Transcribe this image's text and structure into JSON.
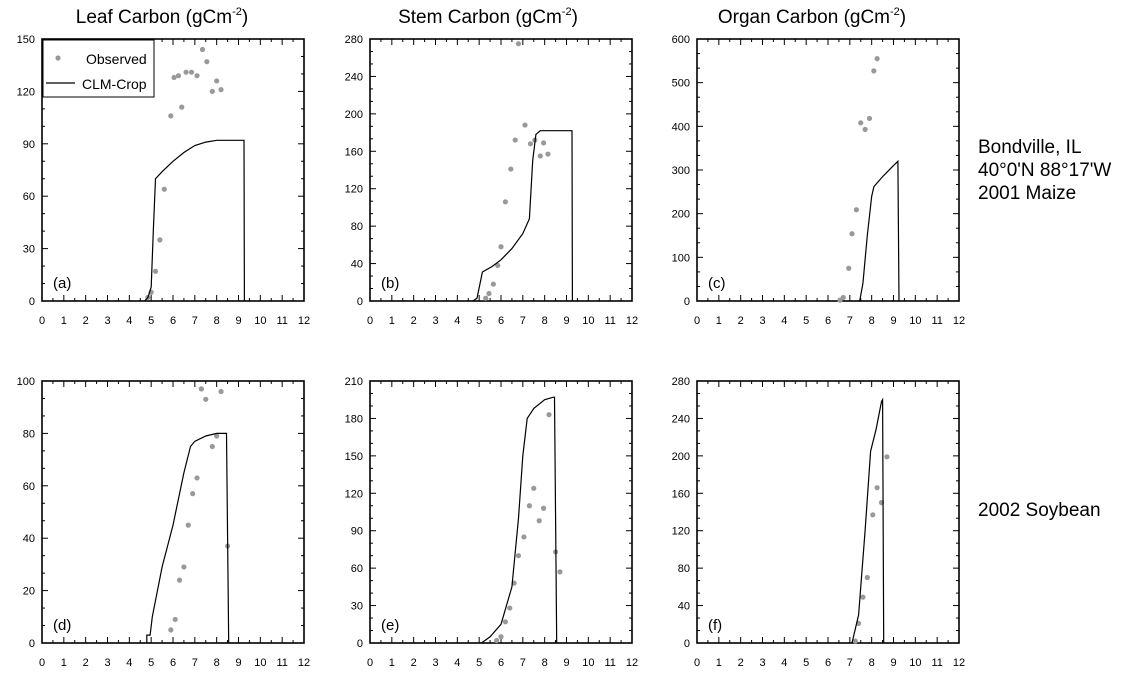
{
  "column_titles": [
    {
      "text": "Leaf Carbon (gCm",
      "sup": "-2",
      "close": ")"
    },
    {
      "text": "Stem Carbon (gCm",
      "sup": "-2",
      "close": ")"
    },
    {
      "text": "Organ Carbon (gCm",
      "sup": "-2",
      "close": ")"
    }
  ],
  "row_labels": [
    [
      "Bondville, IL",
      "40°0'N 88°17'W",
      "2001 Maize"
    ],
    [
      "2002 Soybean"
    ]
  ],
  "legend": {
    "observed": "Observed",
    "model": "CLM-Crop",
    "placement": "top-left"
  },
  "colors": {
    "observed": "#999999",
    "model": "#000000"
  },
  "chart_data": [
    {
      "type": "scatter",
      "panel": "(a)",
      "xlim": [
        0,
        12
      ],
      "ylim": [
        0,
        150
      ],
      "xticks": [
        0,
        1,
        2,
        3,
        4,
        5,
        6,
        7,
        8,
        9,
        10,
        11,
        12
      ],
      "yticks": [
        0,
        30,
        60,
        90,
        120,
        150
      ],
      "series": [
        {
          "name": "Observed",
          "type": "scatter",
          "points": [
            [
              4.85,
              2
            ],
            [
              5.0,
              5
            ],
            [
              5.2,
              17
            ],
            [
              5.4,
              35
            ],
            [
              5.6,
              64
            ],
            [
              5.9,
              106
            ],
            [
              6.05,
              128
            ],
            [
              6.25,
              129
            ],
            [
              6.4,
              111
            ],
            [
              6.6,
              131
            ],
            [
              6.85,
              131
            ],
            [
              7.1,
              129
            ],
            [
              7.35,
              144
            ],
            [
              7.55,
              137
            ],
            [
              7.8,
              120
            ],
            [
              8.0,
              126
            ],
            [
              8.2,
              121
            ]
          ]
        },
        {
          "name": "CLM-Crop",
          "type": "line",
          "points": [
            [
              4.7,
              0
            ],
            [
              4.85,
              2
            ],
            [
              5.0,
              8
            ],
            [
              5.1,
              40
            ],
            [
              5.2,
              70
            ],
            [
              5.5,
              74
            ],
            [
              6.0,
              80
            ],
            [
              6.5,
              85
            ],
            [
              7.0,
              89
            ],
            [
              7.5,
              91
            ],
            [
              8.0,
              92
            ],
            [
              8.5,
              92
            ],
            [
              9.25,
              92
            ],
            [
              9.27,
              0
            ]
          ]
        }
      ]
    },
    {
      "type": "scatter",
      "panel": "(b)",
      "xlim": [
        0,
        12
      ],
      "ylim": [
        0,
        280
      ],
      "xticks": [
        0,
        1,
        2,
        3,
        4,
        5,
        6,
        7,
        8,
        9,
        10,
        11,
        12
      ],
      "yticks": [
        0,
        40,
        80,
        120,
        160,
        200,
        240,
        280
      ],
      "series": [
        {
          "name": "Observed",
          "type": "scatter",
          "points": [
            [
              5.3,
              3
            ],
            [
              5.45,
              8
            ],
            [
              5.65,
              18
            ],
            [
              5.85,
              38
            ],
            [
              6.0,
              58
            ],
            [
              6.2,
              106
            ],
            [
              6.45,
              141
            ],
            [
              6.65,
              172
            ],
            [
              6.8,
              275
            ],
            [
              7.1,
              188
            ],
            [
              7.35,
              168
            ],
            [
              7.55,
              172
            ],
            [
              7.8,
              155
            ],
            [
              7.95,
              169
            ],
            [
              8.15,
              157
            ]
          ]
        },
        {
          "name": "CLM-Crop",
          "type": "line",
          "points": [
            [
              4.7,
              0
            ],
            [
              4.9,
              3
            ],
            [
              5.05,
              20
            ],
            [
              5.15,
              31
            ],
            [
              5.6,
              37
            ],
            [
              6.0,
              44
            ],
            [
              6.5,
              56
            ],
            [
              7.0,
              72
            ],
            [
              7.3,
              88
            ],
            [
              7.45,
              150
            ],
            [
              7.6,
              178
            ],
            [
              7.8,
              182
            ],
            [
              8.5,
              182
            ],
            [
              9.25,
              182
            ],
            [
              9.27,
              0
            ]
          ]
        }
      ]
    },
    {
      "type": "scatter",
      "panel": "(c)",
      "xlim": [
        0,
        12
      ],
      "ylim": [
        0,
        600
      ],
      "xticks": [
        0,
        1,
        2,
        3,
        4,
        5,
        6,
        7,
        8,
        9,
        10,
        11,
        12
      ],
      "yticks": [
        0,
        100,
        200,
        300,
        400,
        500,
        600
      ],
      "series": [
        {
          "name": "Observed",
          "type": "scatter",
          "points": [
            [
              6.55,
              2
            ],
            [
              6.7,
              8
            ],
            [
              6.95,
              75
            ],
            [
              7.1,
              154
            ],
            [
              7.3,
              209
            ],
            [
              7.5,
              408
            ],
            [
              7.7,
              393
            ],
            [
              7.9,
              418
            ],
            [
              8.1,
              527
            ],
            [
              8.25,
              555
            ]
          ]
        },
        {
          "name": "CLM-Crop",
          "type": "line",
          "points": [
            [
              7.45,
              0
            ],
            [
              7.6,
              40
            ],
            [
              7.8,
              150
            ],
            [
              8.0,
              240
            ],
            [
              8.1,
              262
            ],
            [
              8.5,
              285
            ],
            [
              9.0,
              310
            ],
            [
              9.2,
              320
            ],
            [
              9.25,
              0
            ]
          ]
        }
      ]
    },
    {
      "type": "scatter",
      "panel": "(d)",
      "xlim": [
        0,
        12
      ],
      "ylim": [
        0,
        100
      ],
      "xticks": [
        0,
        1,
        2,
        3,
        4,
        5,
        6,
        7,
        8,
        9,
        10,
        11,
        12
      ],
      "yticks": [
        0,
        20,
        40,
        60,
        80,
        100
      ],
      "series": [
        {
          "name": "Observed",
          "type": "scatter",
          "points": [
            [
              5.9,
              5
            ],
            [
              6.1,
              9
            ],
            [
              6.3,
              24
            ],
            [
              6.5,
              29
            ],
            [
              6.7,
              45
            ],
            [
              6.9,
              57
            ],
            [
              7.1,
              63
            ],
            [
              7.3,
              97
            ],
            [
              7.5,
              93
            ],
            [
              7.8,
              75
            ],
            [
              8.0,
              79
            ],
            [
              8.2,
              96
            ],
            [
              8.5,
              37
            ]
          ]
        },
        {
          "name": "CLM-Crop",
          "type": "line",
          "points": [
            [
              4.8,
              0
            ],
            [
              4.8,
              3
            ],
            [
              4.95,
              3
            ],
            [
              5.05,
              10
            ],
            [
              5.5,
              29
            ],
            [
              6.0,
              45
            ],
            [
              6.5,
              65
            ],
            [
              6.8,
              75
            ],
            [
              7.0,
              77
            ],
            [
              7.5,
              79
            ],
            [
              8.0,
              80
            ],
            [
              8.3,
              80
            ],
            [
              8.45,
              80
            ],
            [
              8.55,
              0
            ]
          ]
        }
      ]
    },
    {
      "type": "scatter",
      "panel": "(e)",
      "xlim": [
        0,
        12
      ],
      "ylim": [
        0,
        210
      ],
      "xticks": [
        0,
        1,
        2,
        3,
        4,
        5,
        6,
        7,
        8,
        9,
        10,
        11,
        12
      ],
      "yticks": [
        0,
        30,
        60,
        90,
        120,
        150,
        180,
        210
      ],
      "series": [
        {
          "name": "Observed",
          "type": "scatter",
          "points": [
            [
              5.8,
              2
            ],
            [
              6.0,
              5
            ],
            [
              6.2,
              17
            ],
            [
              6.4,
              28
            ],
            [
              6.6,
              48
            ],
            [
              6.8,
              70
            ],
            [
              7.05,
              85
            ],
            [
              7.3,
              110
            ],
            [
              7.5,
              124
            ],
            [
              7.75,
              98
            ],
            [
              7.95,
              108
            ],
            [
              8.2,
              183
            ],
            [
              8.5,
              73
            ],
            [
              8.7,
              57
            ]
          ]
        },
        {
          "name": "CLM-Crop",
          "type": "line",
          "points": [
            [
              5.1,
              0
            ],
            [
              5.5,
              5
            ],
            [
              6.0,
              15
            ],
            [
              6.5,
              45
            ],
            [
              6.8,
              100
            ],
            [
              7.0,
              150
            ],
            [
              7.2,
              180
            ],
            [
              7.5,
              188
            ],
            [
              8.0,
              195
            ],
            [
              8.4,
              197
            ],
            [
              8.45,
              197
            ],
            [
              8.55,
              0
            ]
          ]
        }
      ]
    },
    {
      "type": "scatter",
      "panel": "(f)",
      "xlim": [
        0,
        12
      ],
      "ylim": [
        0,
        280
      ],
      "xticks": [
        0,
        1,
        2,
        3,
        4,
        5,
        6,
        7,
        8,
        9,
        10,
        11,
        12
      ],
      "yticks": [
        0,
        40,
        80,
        120,
        160,
        200,
        240,
        280
      ],
      "series": [
        {
          "name": "Observed",
          "type": "scatter",
          "points": [
            [
              7.25,
              2
            ],
            [
              7.4,
              21
            ],
            [
              7.6,
              49
            ],
            [
              7.8,
              70
            ],
            [
              8.05,
              137
            ],
            [
              8.25,
              166
            ],
            [
              8.45,
              150
            ],
            [
              8.7,
              199
            ]
          ]
        },
        {
          "name": "CLM-Crop",
          "type": "line",
          "points": [
            [
              7.1,
              0
            ],
            [
              7.4,
              30
            ],
            [
              7.7,
              120
            ],
            [
              7.95,
              205
            ],
            [
              8.2,
              228
            ],
            [
              8.45,
              258
            ],
            [
              8.5,
              260
            ],
            [
              8.55,
              0
            ]
          ]
        }
      ]
    }
  ]
}
